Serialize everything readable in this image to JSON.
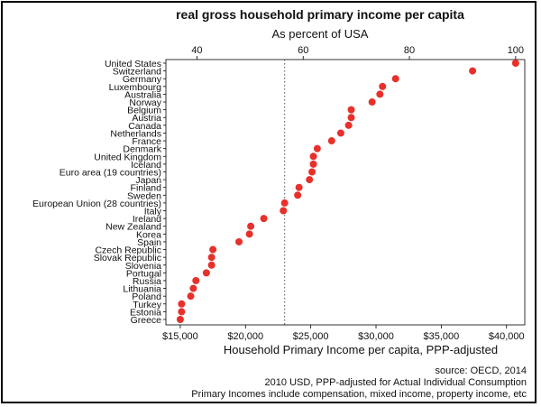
{
  "chart_data": {
    "type": "scatter",
    "title": "real gross household primary income per capita",
    "top_axis": {
      "label": "As percent of USA",
      "ticks": [
        40,
        60,
        80,
        100
      ]
    },
    "xlabel": "Household Primary Income per capita, PPP-adjusted",
    "xlim": [
      13900,
      41400
    ],
    "x_ticks": [
      {
        "value": 15000,
        "label": "$15,000"
      },
      {
        "value": 20000,
        "label": "$20,000"
      },
      {
        "value": 25000,
        "label": "$25,000"
      },
      {
        "value": 30000,
        "label": "$30,000"
      },
      {
        "value": 35000,
        "label": "$35,000"
      },
      {
        "value": 40000,
        "label": "$40,000"
      }
    ],
    "reference_line": {
      "x": 23000,
      "style": "dotted"
    },
    "grid": false,
    "point_color": "#e8302b",
    "categories": [
      "United States",
      "Switzerland",
      "Germany",
      "Luxembourg",
      "Australia",
      "Norway",
      "Belgium",
      "Austria",
      "Canada",
      "Netherlands",
      "France",
      "Denmark",
      "United Kingdom",
      "Iceland",
      "Euro area (19 countries)",
      "Japan",
      "Finland",
      "Sweden",
      "European Union (28 countries)",
      "Italy",
      "Ireland",
      "New Zealand",
      "Korea",
      "Spain",
      "Czech Republic",
      "Slovak Republic",
      "Slovenia",
      "Portugal",
      "Russia",
      "Lithuania",
      "Poland",
      "Turkey",
      "Estonia",
      "Greece"
    ],
    "values": [
      40700,
      37400,
      31500,
      30500,
      30300,
      29700,
      28100,
      28100,
      27900,
      27300,
      26600,
      25500,
      25200,
      25200,
      25100,
      24900,
      24100,
      24000,
      23000,
      22900,
      21400,
      20400,
      20300,
      19500,
      17500,
      17400,
      17400,
      17000,
      16200,
      16000,
      15800,
      15100,
      15100,
      15000
    ],
    "source_notes": [
      "source: OECD, 2014",
      "2010 USD, PPP-adjusted for Actual Individual Consumption",
      "Primary Incomes include compensation, mixed income, property income, etc"
    ]
  }
}
